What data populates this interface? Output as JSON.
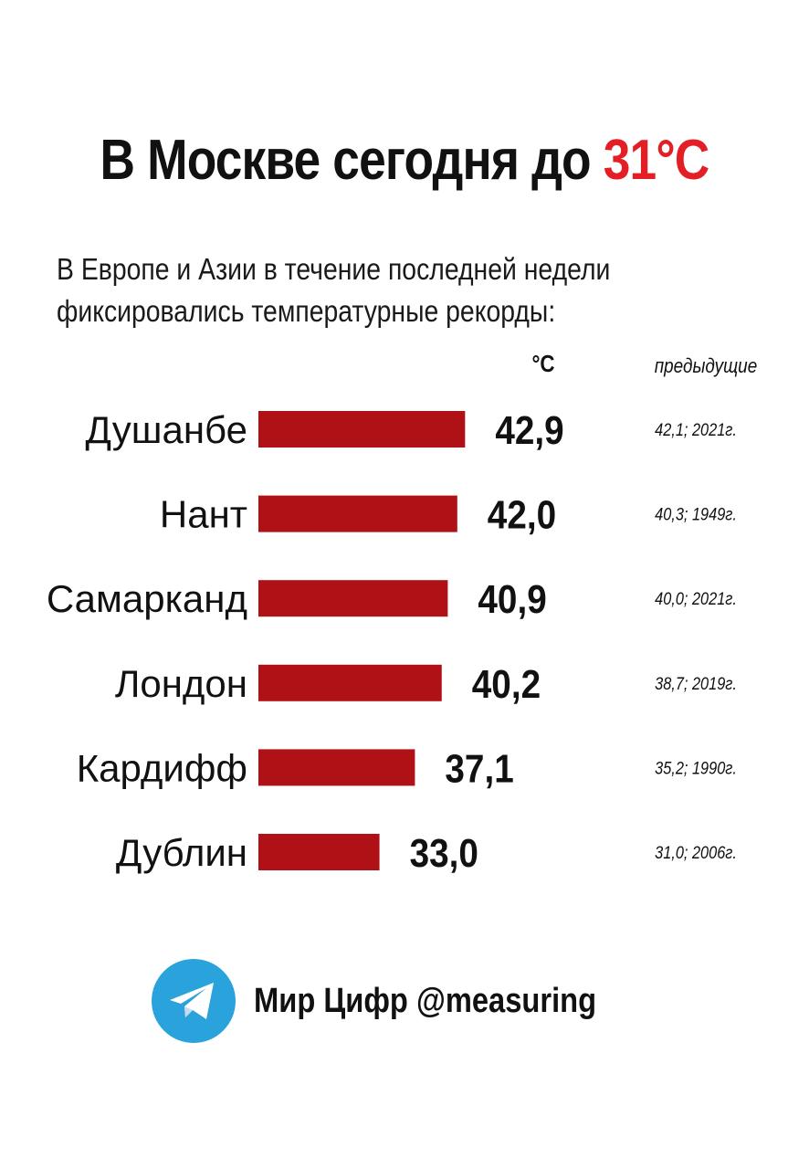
{
  "header": {
    "title_prefix": "В Москве сегодня до",
    "title_accent": "31°C",
    "subtitle_line1": "В Европе и Азии в течение последней недели",
    "subtitle_line2": "фиксировались температурные рекорды:"
  },
  "columns": {
    "unit": "°C",
    "previous": "предыдущие"
  },
  "chart_data": {
    "type": "bar",
    "orientation": "horizontal",
    "categories": [
      "Душанбе",
      "Нант",
      "Самарканд",
      "Лондон",
      "Кардифф",
      "Дублин"
    ],
    "values": [
      42.9,
      42.0,
      40.9,
      40.2,
      37.1,
      33.0
    ],
    "value_labels": [
      "42,9",
      "42,0",
      "40,9",
      "40,2",
      "37,1",
      "33,0"
    ],
    "previous_records": [
      "42,1; 2021г.",
      "40,3; 1949г.",
      "40,0; 2021г.",
      "38,7; 2019г.",
      "35,2; 1990г.",
      "31,0; 2006г."
    ],
    "bar_color": "#b01116",
    "grid": false
  },
  "footer": {
    "logo_icon": "telegram-icon",
    "text": "Мир Цифр @measuring"
  },
  "colors": {
    "accent": "#e31e24",
    "telegram_blue": "#2aa3dc"
  }
}
